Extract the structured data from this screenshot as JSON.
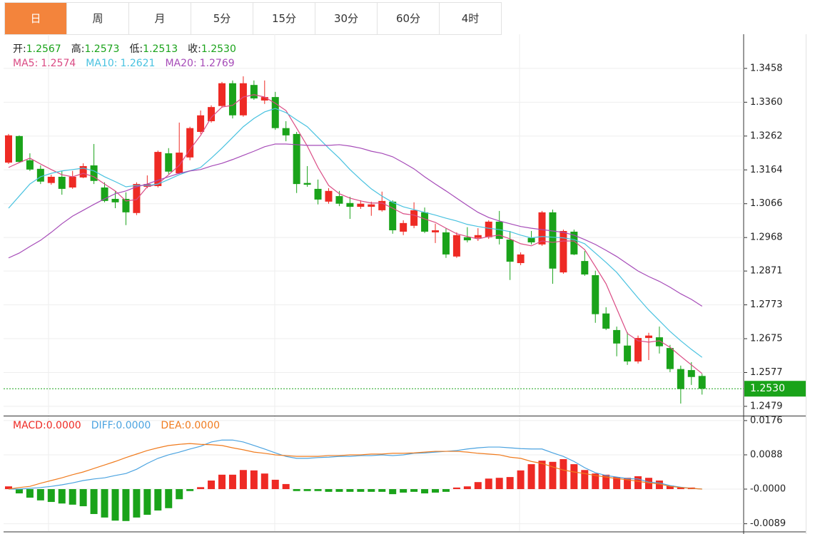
{
  "tabs": [
    "日",
    "周",
    "月",
    "5分",
    "15分",
    "30分",
    "60分",
    "4时"
  ],
  "active_tab": 0,
  "chart_data": [
    {
      "type": "candlestick",
      "quote": [
        {
          "label": "开:",
          "value": "1.2567"
        },
        {
          "label": "高:",
          "value": "1.2573"
        },
        {
          "label": "低:",
          "value": "1.2513"
        },
        {
          "label": "收:",
          "value": "1.2530"
        }
      ],
      "quote_color": "#1aa31a",
      "up_color": "#ee2a24",
      "down_color": "#1aa31a",
      "open": [
        1.3185,
        1.3262,
        1.3192,
        1.3167,
        1.3126,
        1.3144,
        1.3113,
        1.3142,
        1.3177,
        1.3113,
        1.308,
        1.308,
        1.3039,
        1.3115,
        1.3117,
        1.3212,
        1.3154,
        1.32,
        1.3274,
        1.3305,
        1.3349,
        1.3415,
        1.3322,
        1.341,
        1.3365,
        1.3375,
        1.3285,
        1.3268,
        1.3126,
        1.3109,
        1.3072,
        1.3088,
        1.3068,
        1.3057,
        1.3057,
        1.3047,
        1.3072,
        1.2985,
        1.3002,
        1.3041,
        1.2983,
        1.2983,
        1.2913,
        1.2969,
        1.2967,
        1.2969,
        1.3014,
        1.2962,
        1.2894,
        1.2967,
        1.2948,
        1.3041,
        1.2867,
        1.2985,
        1.29,
        1.2859,
        1.2748,
        1.27,
        1.2655,
        1.2609,
        1.2677,
        1.2679,
        1.2648,
        1.2587,
        1.2584,
        1.2567
      ],
      "high": [
        1.3268,
        1.3264,
        1.3212,
        1.3177,
        1.315,
        1.3161,
        1.3161,
        1.3183,
        1.3239,
        1.3128,
        1.3103,
        1.3099,
        1.3128,
        1.3148,
        1.322,
        1.3227,
        1.3301,
        1.3289,
        1.3336,
        1.3351,
        1.3419,
        1.3423,
        1.3435,
        1.3423,
        1.3423,
        1.339,
        1.3305,
        1.3274,
        1.3175,
        1.3136,
        1.3111,
        1.3103,
        1.3086,
        1.3076,
        1.3072,
        1.3101,
        1.3076,
        1.3018,
        1.307,
        1.3055,
        1.3008,
        1.2995,
        1.2983,
        1.2998,
        1.2995,
        1.3018,
        1.3045,
        1.2987,
        1.2925,
        1.2987,
        1.3045,
        1.3049,
        1.2991,
        1.2991,
        1.2929,
        1.2872,
        1.2766,
        1.271,
        1.2694,
        1.2684,
        1.2692,
        1.271,
        1.2657,
        1.2597,
        1.2607,
        1.2573
      ],
      "low": [
        1.3181,
        1.3185,
        1.3161,
        1.3123,
        1.3121,
        1.3092,
        1.3109,
        1.314,
        1.3123,
        1.307,
        1.3053,
        1.3004,
        1.3033,
        1.3111,
        1.3113,
        1.3152,
        1.3152,
        1.3192,
        1.3268,
        1.3301,
        1.3344,
        1.3313,
        1.3318,
        1.3367,
        1.3355,
        1.328,
        1.3247,
        1.3097,
        1.3115,
        1.3064,
        1.3066,
        1.3059,
        1.3022,
        1.3051,
        1.3031,
        1.3043,
        1.2979,
        1.2975,
        1.2995,
        1.2981,
        1.2952,
        1.2909,
        1.2909,
        1.2954,
        1.2958,
        1.2964,
        1.2948,
        1.2845,
        1.2888,
        1.2948,
        1.2944,
        1.2834,
        1.2863,
        1.2917,
        1.2857,
        1.2721,
        1.27,
        1.2624,
        1.2599,
        1.2603,
        1.2613,
        1.2632,
        1.2578,
        1.2487,
        1.2541,
        1.2513
      ],
      "close": [
        1.3264,
        1.3187,
        1.3165,
        1.313,
        1.3144,
        1.3109,
        1.3144,
        1.3175,
        1.3132,
        1.3074,
        1.307,
        1.3041,
        1.3123,
        1.3123,
        1.3216,
        1.3159,
        1.3214,
        1.3285,
        1.3322,
        1.3346,
        1.3415,
        1.3322,
        1.3415,
        1.3371,
        1.3375,
        1.3285,
        1.3264,
        1.3123,
        1.3121,
        1.3078,
        1.3103,
        1.3066,
        1.3057,
        1.3066,
        1.3064,
        1.3074,
        1.2989,
        1.301,
        1.3047,
        1.2985,
        1.2989,
        1.2919,
        1.2975,
        1.296,
        1.2975,
        1.3014,
        1.2964,
        1.2898,
        1.2919,
        1.2954,
        1.3041,
        1.2878,
        1.2987,
        1.2919,
        1.2861,
        1.2746,
        1.2704,
        1.2661,
        1.2609,
        1.2677,
        1.2684,
        1.2653,
        1.2587,
        1.2529,
        1.2564,
        1.253
      ],
      "series": [
        {
          "name": "MA5:",
          "legend_value": "1.2574",
          "color": "#da4b84",
          "values": [
            1.3171,
            1.3185,
            1.3198,
            1.3181,
            1.3165,
            1.315,
            1.3144,
            1.3154,
            1.3144,
            1.3123,
            1.3103,
            1.3074,
            1.3078,
            1.3115,
            1.3123,
            1.315,
            1.3177,
            1.3223,
            1.3264,
            1.3316,
            1.3346,
            1.3351,
            1.3375,
            1.3382,
            1.3375,
            1.3357,
            1.3336,
            1.3285,
            1.3233,
            1.3171,
            1.3119,
            1.3095,
            1.3082,
            1.3074,
            1.3068,
            1.3068,
            1.3053,
            1.3037,
            1.3033,
            1.3022,
            1.3012,
            1.2995,
            1.2979,
            1.2971,
            1.2964,
            1.2971,
            1.2975,
            1.2964,
            1.295,
            1.2944,
            1.2958,
            1.2954,
            1.2958,
            1.2958,
            1.2933,
            1.2884,
            1.2834,
            1.2762,
            1.269,
            1.2669,
            1.2665,
            1.2669,
            1.265,
            1.2624,
            1.2599,
            1.2574
          ]
        },
        {
          "name": "MA10:",
          "legend_value": "1.2621",
          "color": "#49c2e0",
          "values": [
            1.3053,
            1.3088,
            1.3123,
            1.3144,
            1.3154,
            1.3161,
            1.3165,
            1.3169,
            1.3161,
            1.3144,
            1.313,
            1.3115,
            1.3119,
            1.3119,
            1.3123,
            1.3136,
            1.315,
            1.3161,
            1.3171,
            1.3198,
            1.3227,
            1.3258,
            1.3289,
            1.3313,
            1.3332,
            1.3342,
            1.333,
            1.3309,
            1.3289,
            1.3258,
            1.3227,
            1.3198,
            1.3165,
            1.3136,
            1.3109,
            1.3088,
            1.307,
            1.3057,
            1.3049,
            1.3041,
            1.3033,
            1.3024,
            1.3016,
            1.3006,
            1.3,
            1.2995,
            1.2991,
            1.2985,
            1.2975,
            1.2967,
            1.2971,
            1.2969,
            1.2967,
            1.2962,
            1.295,
            1.2923,
            1.2896,
            1.2867,
            1.283,
            1.2793,
            1.2758,
            1.2727,
            1.2696,
            1.2669,
            1.2644,
            1.2621
          ]
        },
        {
          "name": "MA20:",
          "legend_value": "1.2769",
          "color": "#a64bb8",
          "values": [
            1.2909,
            1.2923,
            1.2942,
            1.296,
            1.2983,
            1.3008,
            1.303,
            1.3047,
            1.3064,
            1.308,
            1.3095,
            1.3103,
            1.3115,
            1.3123,
            1.3134,
            1.3144,
            1.3154,
            1.3161,
            1.3165,
            1.3175,
            1.3183,
            1.3194,
            1.3206,
            1.3218,
            1.3231,
            1.3239,
            1.3239,
            1.3237,
            1.3235,
            1.3235,
            1.3235,
            1.3237,
            1.3233,
            1.3227,
            1.3218,
            1.3212,
            1.3202,
            1.3185,
            1.3167,
            1.3144,
            1.3123,
            1.3103,
            1.3082,
            1.3061,
            1.3041,
            1.3026,
            1.3016,
            1.3008,
            1.3,
            1.2995,
            1.2991,
            1.2987,
            1.2983,
            1.2975,
            1.2962,
            1.2948,
            1.2931,
            1.2913,
            1.2892,
            1.2871,
            1.2855,
            1.2841,
            1.2824,
            1.2805,
            1.2789,
            1.2769
          ]
        }
      ],
      "last_price": {
        "value": 1.253,
        "label": "1.2530"
      },
      "ylim": [
        1.2452,
        1.3557
      ],
      "yticks": [
        1.3458,
        {
          "value": 1.336,
          "label": "1.3360"
        },
        1.3262,
        1.3164,
        1.3066,
        1.2968,
        1.2871,
        1.2773,
        1.2675,
        1.2577,
        1.2479
      ],
      "grid": true
    },
    {
      "type": "macd",
      "series": [
        {
          "name": "MACD:",
          "legend_value": "0.0000",
          "color": "#ee2a24",
          "down_color": "#1aa31a",
          "values": [
            0.0007,
            -0.0011,
            -0.0022,
            -0.0029,
            -0.0033,
            -0.0037,
            -0.004,
            -0.0044,
            -0.0064,
            -0.0073,
            -0.0081,
            -0.0082,
            -0.0073,
            -0.0066,
            -0.0055,
            -0.0049,
            -0.0026,
            -0.0005,
            0.0005,
            0.0022,
            0.0037,
            0.0037,
            0.0049,
            0.0048,
            0.004,
            0.0024,
            0.0013,
            -0.0005,
            -0.0005,
            -0.0005,
            -0.0007,
            -0.0007,
            -0.0007,
            -0.0007,
            -0.0007,
            -0.0007,
            -0.0013,
            -0.0009,
            -0.0007,
            -0.0011,
            -0.0009,
            -0.0007,
            0.0004,
            0.0007,
            0.0018,
            0.0027,
            0.0029,
            0.0031,
            0.0048,
            0.0064,
            0.0073,
            0.007,
            0.0077,
            0.0064,
            0.0049,
            0.004,
            0.0037,
            0.0031,
            0.0029,
            0.0033,
            0.0029,
            0.0022,
            0.0009,
            0.0004,
            0.0004,
            0
          ]
        },
        {
          "name": "DIFF:",
          "legend_value": "0.0000",
          "color": "#4ba3e0",
          "values": [
            0,
            0,
            0.0002,
            0.0004,
            0.0007,
            0.0011,
            0.0016,
            0.0022,
            0.0026,
            0.0029,
            0.0035,
            0.004,
            0.0051,
            0.0066,
            0.0079,
            0.0088,
            0.0095,
            0.0103,
            0.011,
            0.0121,
            0.0126,
            0.0126,
            0.0121,
            0.0112,
            0.0103,
            0.0093,
            0.0084,
            0.0079,
            0.0079,
            0.0081,
            0.0082,
            0.0084,
            0.0084,
            0.0086,
            0.0086,
            0.0088,
            0.0086,
            0.0088,
            0.0092,
            0.0093,
            0.0095,
            0.0097,
            0.0099,
            0.0103,
            0.0106,
            0.0108,
            0.0108,
            0.0106,
            0.0104,
            0.0103,
            0.0103,
            0.0093,
            0.0084,
            0.0071,
            0.0055,
            0.0042,
            0.0035,
            0.0031,
            0.0027,
            0.0026,
            0.0018,
            0.0016,
            0.0009,
            0.0005,
            0.0002,
            0
          ]
        },
        {
          "name": "DEA:",
          "legend_value": "0.0000",
          "color": "#f07b1e",
          "values": [
            0,
            0.0004,
            0.0007,
            0.0015,
            0.0022,
            0.0029,
            0.0037,
            0.0044,
            0.0053,
            0.0062,
            0.0071,
            0.0081,
            0.009,
            0.0099,
            0.0106,
            0.0112,
            0.0115,
            0.0117,
            0.0115,
            0.0114,
            0.0112,
            0.0106,
            0.0101,
            0.0095,
            0.0092,
            0.0088,
            0.0086,
            0.0084,
            0.0084,
            0.0084,
            0.0086,
            0.0086,
            0.0088,
            0.0088,
            0.009,
            0.009,
            0.0092,
            0.0092,
            0.0093,
            0.0095,
            0.0097,
            0.0097,
            0.0097,
            0.0095,
            0.0092,
            0.009,
            0.0088,
            0.0082,
            0.0079,
            0.0071,
            0.0066,
            0.0057,
            0.0049,
            0.0044,
            0.004,
            0.0035,
            0.0031,
            0.0027,
            0.0024,
            0.002,
            0.0016,
            0.0013,
            0.0007,
            0.0004,
            0.0002,
            0
          ]
        }
      ],
      "ylim": [
        -0.0108,
        0.0185
      ],
      "yticks": [
        0.0176,
        0.0088,
        {
          "value": 0,
          "label": "-0.0000"
        },
        -0.0089
      ],
      "grid": true
    }
  ]
}
